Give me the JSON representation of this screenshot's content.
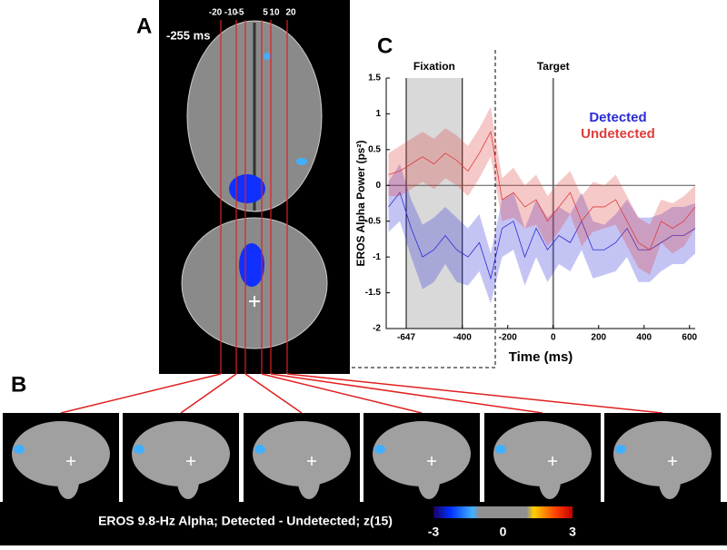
{
  "panels": {
    "a": "A",
    "b": "B",
    "c": "C"
  },
  "brain_time": "-255 ms",
  "slice_labels": [
    "-20",
    "-10",
    "-5",
    "5",
    "10",
    "20"
  ],
  "caption": "EROS 9.8-Hz Alpha; Detected - Undetected; z(15)",
  "colorbar": {
    "ticks": [
      -3,
      0,
      3
    ]
  },
  "chart_data": {
    "type": "line",
    "xlabel": "Time (ms)",
    "ylabel": "EROS Alpha Power (ps²)",
    "xlim": [
      -735,
      625
    ],
    "ylim": [
      -2,
      1.5
    ],
    "xticks": [
      -647,
      -400,
      -200,
      0,
      200,
      400,
      600
    ],
    "yticks": [
      1.5,
      1,
      0.5,
      0,
      -0.5,
      -1,
      -1.5,
      -2
    ],
    "fixation": {
      "label": "Fixation",
      "start": -647,
      "end": -400
    },
    "target": {
      "label": "Target",
      "x": 0
    },
    "cursor_x": -255,
    "legend": "upper right",
    "x": [
      -725,
      -675,
      -625,
      -575,
      -525,
      -475,
      -425,
      -375,
      -325,
      -275,
      -225,
      -175,
      -125,
      -75,
      -25,
      25,
      75,
      125,
      175,
      225,
      275,
      325,
      375,
      425,
      475,
      525,
      575,
      625
    ],
    "series": [
      {
        "name": "Detected",
        "color": "#2b2bd6",
        "values": [
          -0.3,
          -0.1,
          -0.6,
          -1.0,
          -0.9,
          -0.7,
          -0.9,
          -1.0,
          -0.8,
          -1.3,
          -0.6,
          -0.5,
          -1.0,
          -0.6,
          -0.9,
          -0.7,
          -0.8,
          -0.5,
          -0.9,
          -0.9,
          -0.8,
          -0.6,
          -0.9,
          -0.9,
          -0.8,
          -0.7,
          -0.7,
          -0.6
        ],
        "error": [
          0.35,
          0.4,
          0.4,
          0.45,
          0.45,
          0.4,
          0.45,
          0.4,
          0.4,
          0.35,
          0.4,
          0.4,
          0.4,
          0.4,
          0.45,
          0.4,
          0.4,
          0.4,
          0.4,
          0.35,
          0.4,
          0.4,
          0.45,
          0.45,
          0.4,
          0.4,
          0.4,
          0.35
        ]
      },
      {
        "name": "Undetected",
        "color": "#e03c3c",
        "values": [
          0.15,
          0.2,
          0.3,
          0.4,
          0.3,
          0.45,
          0.35,
          0.2,
          0.45,
          0.75,
          -0.2,
          -0.1,
          -0.3,
          -0.2,
          -0.5,
          -0.3,
          -0.1,
          -0.5,
          -0.3,
          -0.3,
          -0.2,
          -0.5,
          -0.8,
          -0.9,
          -0.5,
          -0.6,
          -0.5,
          -0.3
        ],
        "error": [
          0.3,
          0.35,
          0.35,
          0.35,
          0.35,
          0.35,
          0.35,
          0.35,
          0.35,
          0.35,
          0.3,
          0.35,
          0.3,
          0.35,
          0.35,
          0.35,
          0.3,
          0.35,
          0.35,
          0.3,
          0.35,
          0.35,
          0.35,
          0.35,
          0.3,
          0.35,
          0.35,
          0.3
        ]
      }
    ]
  }
}
